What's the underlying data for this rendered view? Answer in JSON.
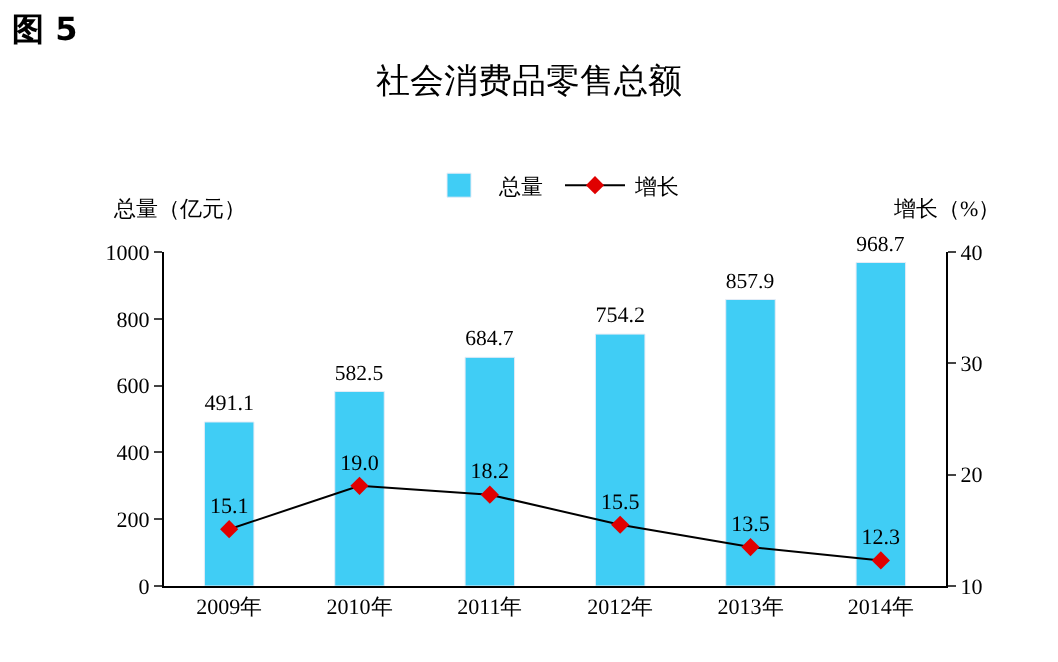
{
  "chart_data": {
    "type": "bar",
    "title": "社会消费品零售总额",
    "ylabel": "总量（亿元）",
    "y2label": "增长（%）",
    "annotations": [
      "图 5"
    ],
    "categories": [
      "2009年",
      "2010年",
      "2011年",
      "2012年",
      "2013年",
      "2014年"
    ],
    "series": [
      {
        "name": "总量",
        "color": "#40cdf5",
        "values": [
          491.1,
          582.5,
          684.7,
          754.2,
          857.9,
          968.7
        ],
        "value_labels": [
          "491.1",
          "582.5",
          "684.7",
          "754.2",
          "857.9",
          "968.7"
        ]
      },
      {
        "name": "增长",
        "type": "line",
        "axis": "y2",
        "color": "#e00000",
        "marker": "diamond",
        "values": [
          15.1,
          19.0,
          18.2,
          15.5,
          13.5,
          12.3
        ],
        "value_labels": [
          "15.1",
          "19.0",
          "18.2",
          "15.5",
          "13.5",
          "12.3"
        ]
      }
    ],
    "ylim": [
      0,
      1000
    ],
    "yticks": [
      0,
      200,
      400,
      600,
      800,
      1000
    ],
    "y2lim": [
      10,
      40
    ],
    "y2ticks": [
      10,
      20,
      30,
      40
    ],
    "legend": "top"
  }
}
